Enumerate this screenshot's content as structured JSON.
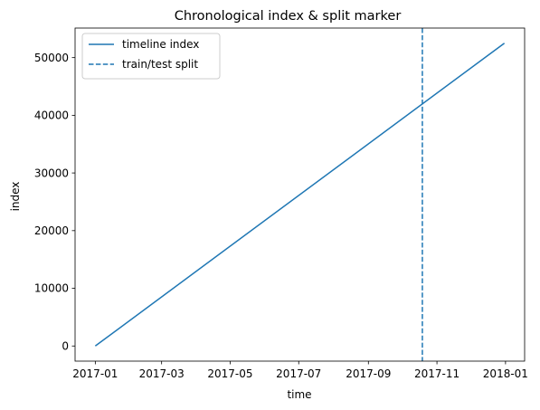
{
  "chart_data": {
    "type": "line",
    "title": "Chronological index & split marker",
    "xlabel": "time",
    "ylabel": "index",
    "x_axis_type": "date",
    "xlim": [
      "2016-12-14",
      "2018-01-18"
    ],
    "ylim": [
      -2625,
      55125
    ],
    "x_ticks": [
      {
        "value": "2017-01-01",
        "label": "2017-01"
      },
      {
        "value": "2017-03-01",
        "label": "2017-03"
      },
      {
        "value": "2017-05-01",
        "label": "2017-05"
      },
      {
        "value": "2017-07-01",
        "label": "2017-07"
      },
      {
        "value": "2017-09-01",
        "label": "2017-09"
      },
      {
        "value": "2017-11-01",
        "label": "2017-11"
      },
      {
        "value": "2018-01-01",
        "label": "2018-01"
      }
    ],
    "y_ticks": [
      {
        "value": 0,
        "label": "0"
      },
      {
        "value": 10000,
        "label": "10000"
      },
      {
        "value": 20000,
        "label": "20000"
      },
      {
        "value": 30000,
        "label": "30000"
      },
      {
        "value": 40000,
        "label": "40000"
      },
      {
        "value": 50000,
        "label": "50000"
      }
    ],
    "series": [
      {
        "name": "timeline index",
        "style": "solid",
        "color": "#1f77b4",
        "points": [
          {
            "x": "2017-01-01",
            "y": 0
          },
          {
            "x": "2017-12-31",
            "y": 52500
          }
        ]
      }
    ],
    "vlines": [
      {
        "name": "train/test split",
        "x": "2017-10-19",
        "style": "dashed",
        "color": "#1f77b4"
      }
    ],
    "legend": {
      "position": "upper-left"
    },
    "grid": false
  }
}
